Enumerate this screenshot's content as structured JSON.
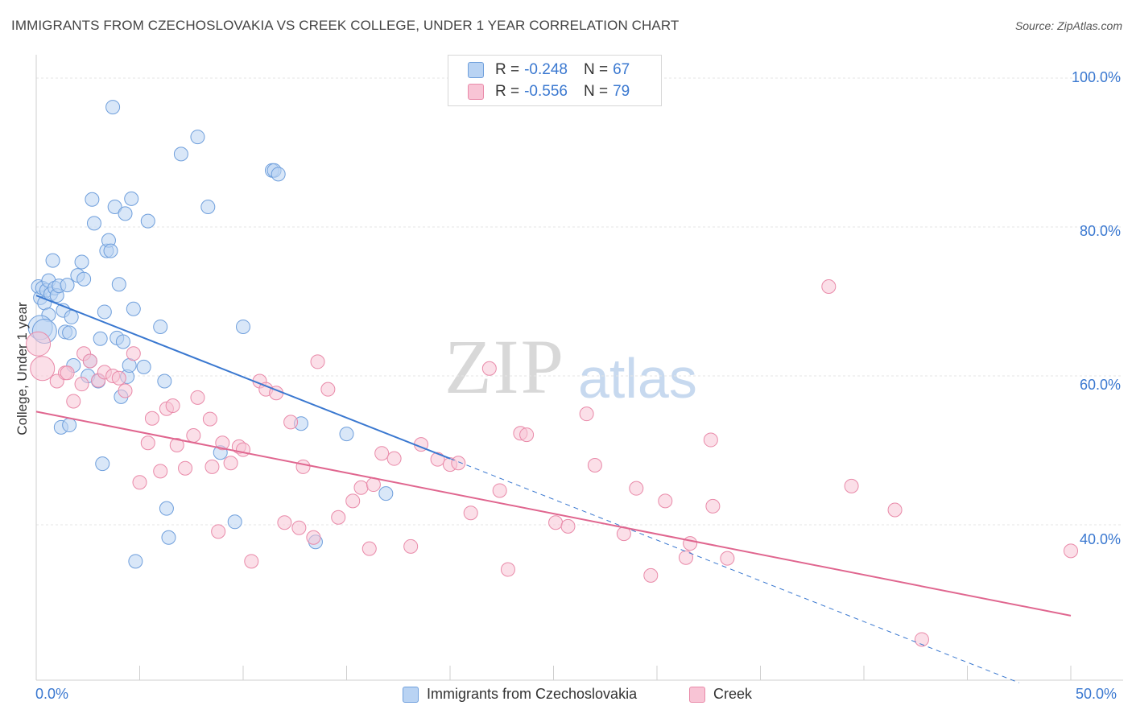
{
  "title": "IMMIGRANTS FROM CZECHOSLOVAKIA VS CREEK COLLEGE, UNDER 1 YEAR CORRELATION CHART",
  "source": "Source: ZipAtlas.com",
  "watermark": {
    "zip": "ZIP",
    "atlas": "atlas"
  },
  "legend": {
    "r_label": "R =",
    "n_label": "N =",
    "series": [
      {
        "r": "-0.248",
        "n": "67",
        "fill": "#b9d3f3",
        "stroke": "#6f9fdc"
      },
      {
        "r": "-0.556",
        "n": "79",
        "fill": "#f8c4d5",
        "stroke": "#e98aa9"
      }
    ]
  },
  "bottom_legend": [
    "Immigrants from Czechoslovakia",
    "Creek"
  ],
  "y_axis_label": "College, Under 1 year",
  "x_ticks": [
    "0.0%",
    "50.0%"
  ],
  "y_ticks": [
    "100.0%",
    "80.0%",
    "60.0%",
    "40.0%"
  ],
  "colors": {
    "blue": "#3a78d0",
    "pink": "#e0668f",
    "blue_fill": "#b9d3f3",
    "pink_fill": "#f8c4d5"
  },
  "chart_data": {
    "type": "scatter",
    "xlim": [
      0,
      50
    ],
    "ylim": [
      20,
      100
    ],
    "grid": true,
    "series": [
      {
        "name": "Immigrants from Czechoslovakia",
        "color": "#6f9fdc",
        "points": [
          [
            0.1,
            72.0
          ],
          [
            0.2,
            70.5
          ],
          [
            0.3,
            71.8
          ],
          [
            0.4,
            69.8
          ],
          [
            0.5,
            71.5
          ],
          [
            0.6,
            72.8
          ],
          [
            0.6,
            68.2
          ],
          [
            0.7,
            71.0
          ],
          [
            0.8,
            75.5
          ],
          [
            0.9,
            71.8
          ],
          [
            1.0,
            70.8
          ],
          [
            1.1,
            72.1
          ],
          [
            1.2,
            53.1
          ],
          [
            1.3,
            68.8
          ],
          [
            1.4,
            65.9
          ],
          [
            1.5,
            72.2
          ],
          [
            1.6,
            53.4
          ],
          [
            1.6,
            65.8
          ],
          [
            1.7,
            67.9
          ],
          [
            1.8,
            61.4
          ],
          [
            2.0,
            73.5
          ],
          [
            2.2,
            75.3
          ],
          [
            2.3,
            73.0
          ],
          [
            2.5,
            60.0
          ],
          [
            2.6,
            62.0
          ],
          [
            2.7,
            83.7
          ],
          [
            2.8,
            80.5
          ],
          [
            3.0,
            59.3
          ],
          [
            3.1,
            65.0
          ],
          [
            3.2,
            48.2
          ],
          [
            3.3,
            68.6
          ],
          [
            3.4,
            76.8
          ],
          [
            3.5,
            78.2
          ],
          [
            3.6,
            76.8
          ],
          [
            3.7,
            96.1
          ],
          [
            3.8,
            82.7
          ],
          [
            3.9,
            65.1
          ],
          [
            4.0,
            72.3
          ],
          [
            4.1,
            57.2
          ],
          [
            4.2,
            64.6
          ],
          [
            4.3,
            81.8
          ],
          [
            4.4,
            59.9
          ],
          [
            4.5,
            61.4
          ],
          [
            4.6,
            83.8
          ],
          [
            4.7,
            69.0
          ],
          [
            4.8,
            35.1
          ],
          [
            5.2,
            61.2
          ],
          [
            5.4,
            80.8
          ],
          [
            6.0,
            66.6
          ],
          [
            6.2,
            59.3
          ],
          [
            6.3,
            42.2
          ],
          [
            6.4,
            38.3
          ],
          [
            7.0,
            89.8
          ],
          [
            7.8,
            92.1
          ],
          [
            8.3,
            82.7
          ],
          [
            8.9,
            49.7
          ],
          [
            9.6,
            40.4
          ],
          [
            10.0,
            66.6
          ],
          [
            11.4,
            87.6
          ],
          [
            11.5,
            87.6
          ],
          [
            11.7,
            87.1
          ],
          [
            12.8,
            53.6
          ],
          [
            13.5,
            37.7
          ],
          [
            15.0,
            52.2
          ],
          [
            16.9,
            44.2
          ],
          [
            0.2,
            66.5
          ],
          [
            0.4,
            66.0
          ]
        ]
      },
      {
        "name": "Creek",
        "color": "#e98aa9",
        "points": [
          [
            0.1,
            64.3
          ],
          [
            0.3,
            61.0
          ],
          [
            1.0,
            59.3
          ],
          [
            1.4,
            60.4
          ],
          [
            1.5,
            60.4
          ],
          [
            1.8,
            56.6
          ],
          [
            2.2,
            58.9
          ],
          [
            2.3,
            63.0
          ],
          [
            2.6,
            62.0
          ],
          [
            3.0,
            59.4
          ],
          [
            3.3,
            60.5
          ],
          [
            3.7,
            60.0
          ],
          [
            4.0,
            59.7
          ],
          [
            4.3,
            58.0
          ],
          [
            4.7,
            63.0
          ],
          [
            5.0,
            45.7
          ],
          [
            5.4,
            51.0
          ],
          [
            5.6,
            54.3
          ],
          [
            6.0,
            47.2
          ],
          [
            6.3,
            55.6
          ],
          [
            6.6,
            56.0
          ],
          [
            6.8,
            50.7
          ],
          [
            7.2,
            47.6
          ],
          [
            7.6,
            52.0
          ],
          [
            7.8,
            57.1
          ],
          [
            8.4,
            54.2
          ],
          [
            8.5,
            47.8
          ],
          [
            8.8,
            39.1
          ],
          [
            9.0,
            51.0
          ],
          [
            9.4,
            48.3
          ],
          [
            9.8,
            50.5
          ],
          [
            10.0,
            50.1
          ],
          [
            10.4,
            35.1
          ],
          [
            10.8,
            59.3
          ],
          [
            11.1,
            58.2
          ],
          [
            11.6,
            57.7
          ],
          [
            12.0,
            40.3
          ],
          [
            12.3,
            53.8
          ],
          [
            12.7,
            39.6
          ],
          [
            12.9,
            47.8
          ],
          [
            13.4,
            38.3
          ],
          [
            13.6,
            61.9
          ],
          [
            14.1,
            58.2
          ],
          [
            14.6,
            41.0
          ],
          [
            15.3,
            43.2
          ],
          [
            15.7,
            45.0
          ],
          [
            16.1,
            36.8
          ],
          [
            16.3,
            45.4
          ],
          [
            16.7,
            49.6
          ],
          [
            17.3,
            48.9
          ],
          [
            18.1,
            37.1
          ],
          [
            18.6,
            50.8
          ],
          [
            19.4,
            48.8
          ],
          [
            20.0,
            48.1
          ],
          [
            20.4,
            48.3
          ],
          [
            21.0,
            41.6
          ],
          [
            21.9,
            61.0
          ],
          [
            22.4,
            44.6
          ],
          [
            22.8,
            34.0
          ],
          [
            23.4,
            52.3
          ],
          [
            23.7,
            52.1
          ],
          [
            25.1,
            40.3
          ],
          [
            25.7,
            39.8
          ],
          [
            26.6,
            54.9
          ],
          [
            27.0,
            48.0
          ],
          [
            28.4,
            38.8
          ],
          [
            29.0,
            44.9
          ],
          [
            29.7,
            33.2
          ],
          [
            30.4,
            43.2
          ],
          [
            31.4,
            35.6
          ],
          [
            31.6,
            37.5
          ],
          [
            32.6,
            51.4
          ],
          [
            32.7,
            42.5
          ],
          [
            33.4,
            35.5
          ],
          [
            38.3,
            72.0
          ],
          [
            39.4,
            45.2
          ],
          [
            41.5,
            42.0
          ],
          [
            42.8,
            24.6
          ],
          [
            50.0,
            36.5
          ]
        ]
      }
    ],
    "trend_lines": [
      {
        "series": "Immigrants from Czechoslovakia",
        "x": [
          0,
          20.0
        ],
        "y": [
          70.8,
          48.9
        ],
        "dashed_extension_to_x": 47.5
      },
      {
        "series": "Creek",
        "x": [
          0,
          50.0
        ],
        "y": [
          55.2,
          27.8
        ]
      }
    ]
  }
}
